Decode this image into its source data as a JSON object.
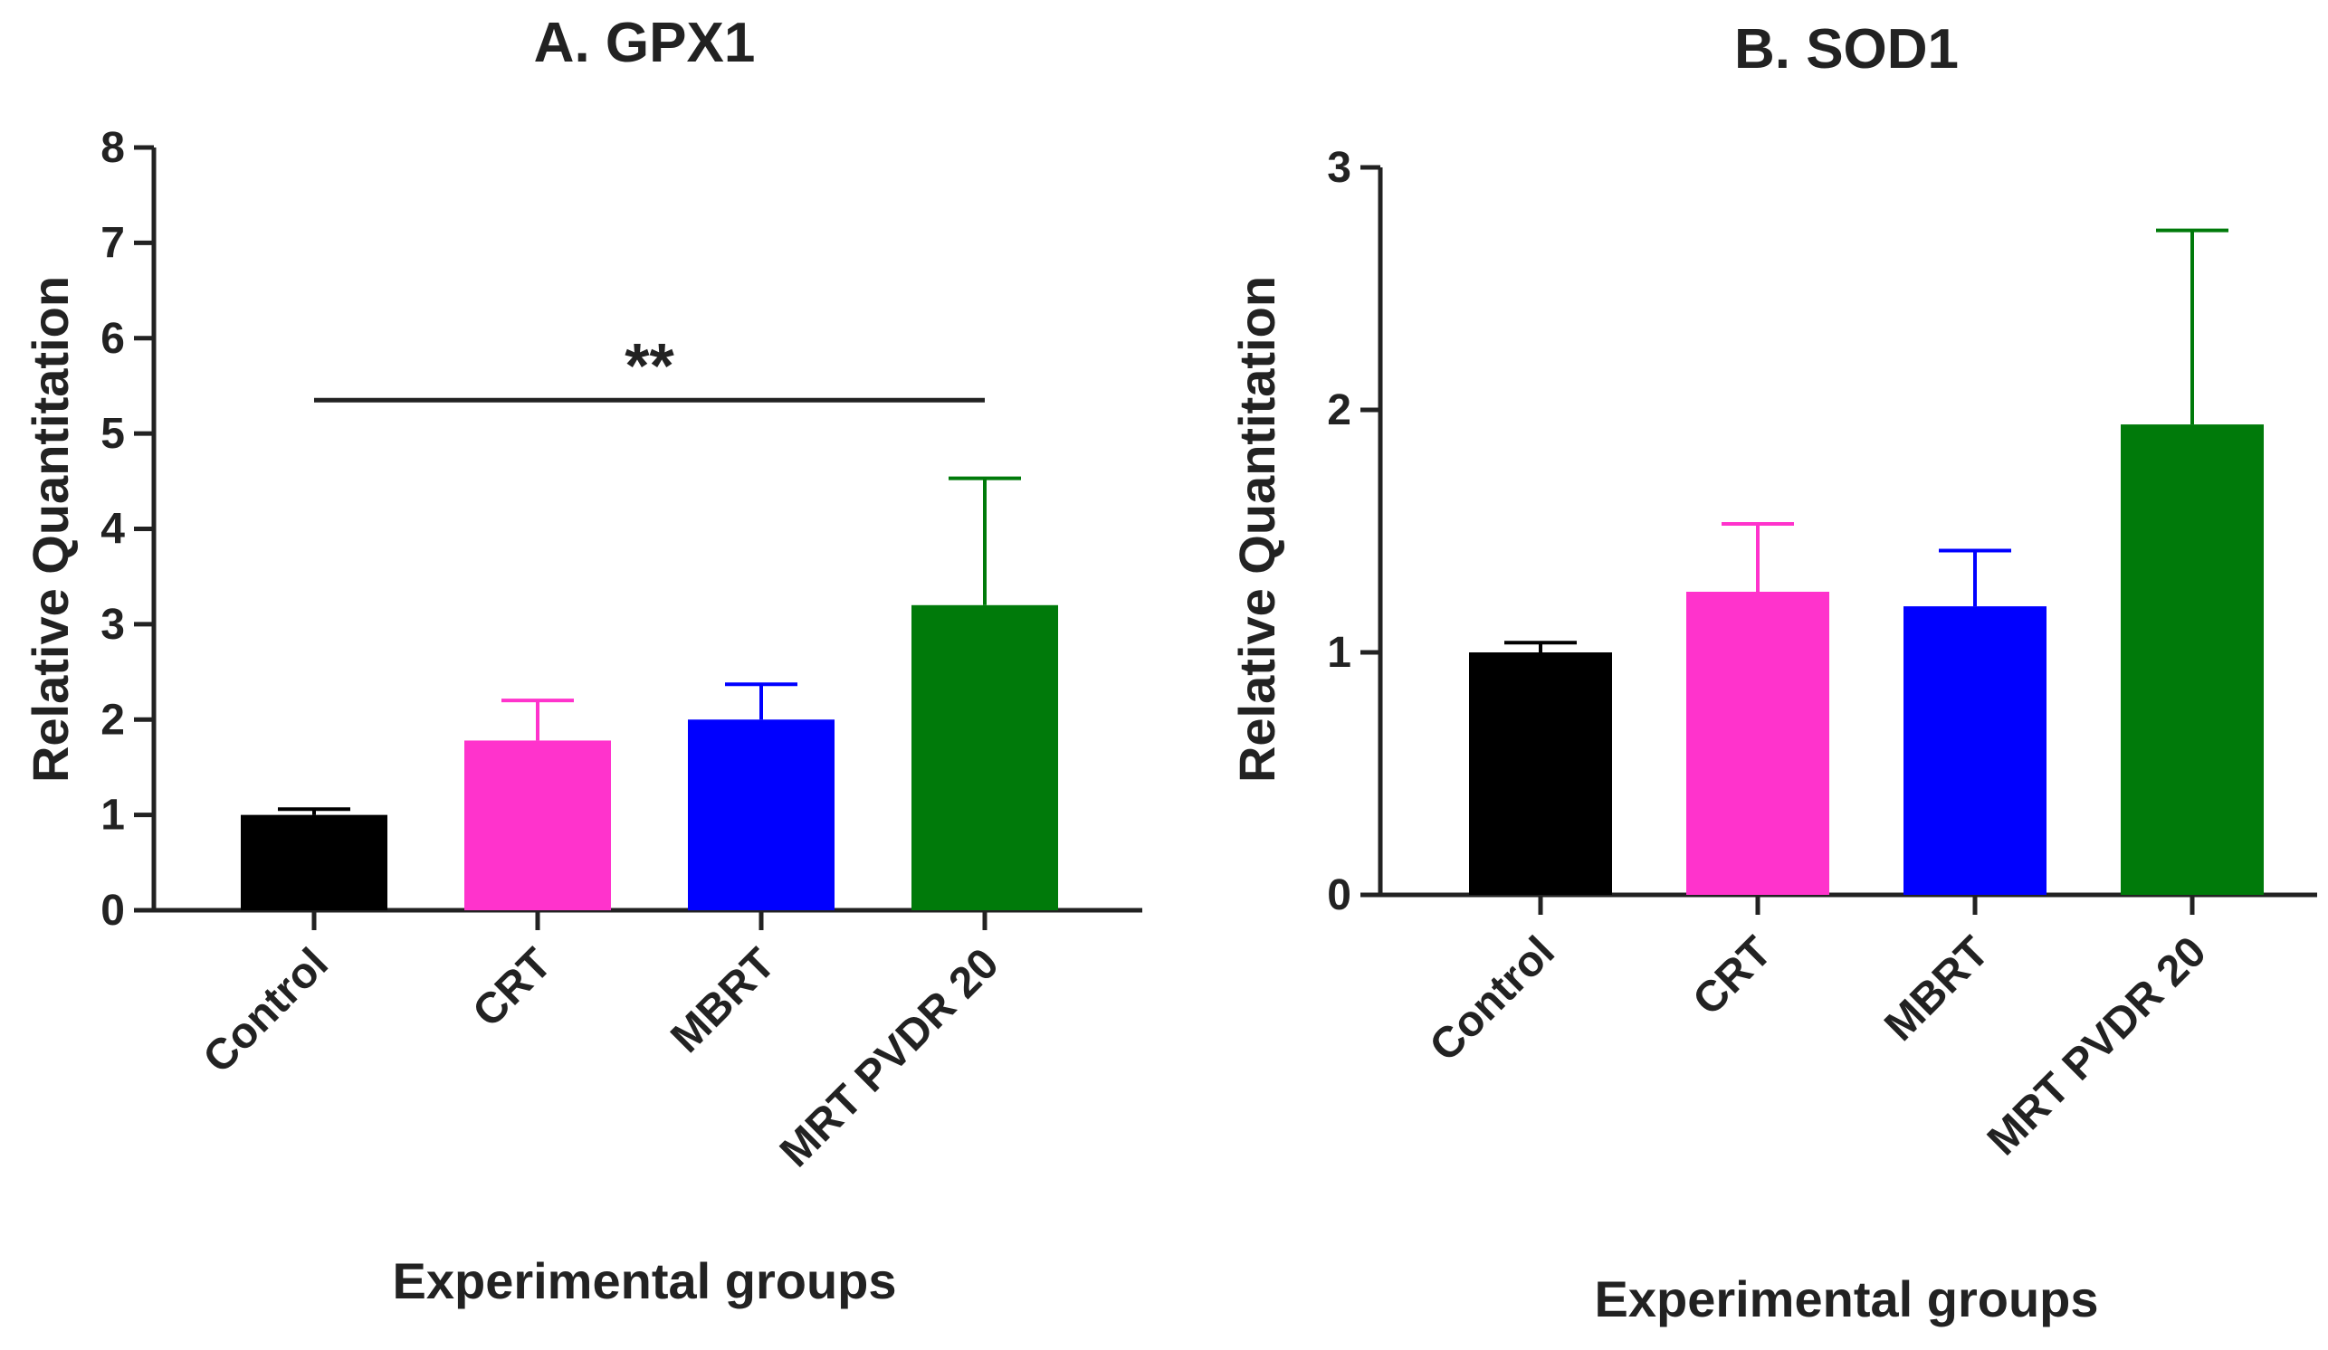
{
  "chart_data": [
    {
      "type": "bar",
      "title": "A. GPX1",
      "xlabel": "Experimental groups",
      "ylabel": "Relative Quantitation",
      "ylim": [
        0,
        8
      ],
      "yticks": [
        0,
        1,
        2,
        3,
        4,
        5,
        6,
        7,
        8
      ],
      "categories": [
        "Control",
        "CRT",
        "MBRT",
        "MRT PVDR 20"
      ],
      "values": [
        1.0,
        1.78,
        2.0,
        3.2
      ],
      "errors": [
        0.06,
        0.42,
        0.37,
        1.33
      ],
      "colors": [
        "#000000",
        "#ff33cc",
        "#0000ff",
        "#007a0a"
      ],
      "significance": {
        "from": "Control",
        "to": "MRT PVDR 20",
        "label": "**",
        "y": 5.35
      }
    },
    {
      "type": "bar",
      "title": "B. SOD1",
      "xlabel": "Experimental groups",
      "ylabel": "Relative Quantitation",
      "ylim": [
        0,
        3
      ],
      "yticks": [
        0,
        1,
        2,
        3
      ],
      "categories": [
        "Control",
        "CRT",
        "MBRT",
        "MRT PVDR 20"
      ],
      "values": [
        1.0,
        1.25,
        1.19,
        1.94
      ],
      "errors": [
        0.04,
        0.28,
        0.23,
        0.8
      ],
      "colors": [
        "#000000",
        "#ff33cc",
        "#0000ff",
        "#007a0a"
      ]
    }
  ]
}
